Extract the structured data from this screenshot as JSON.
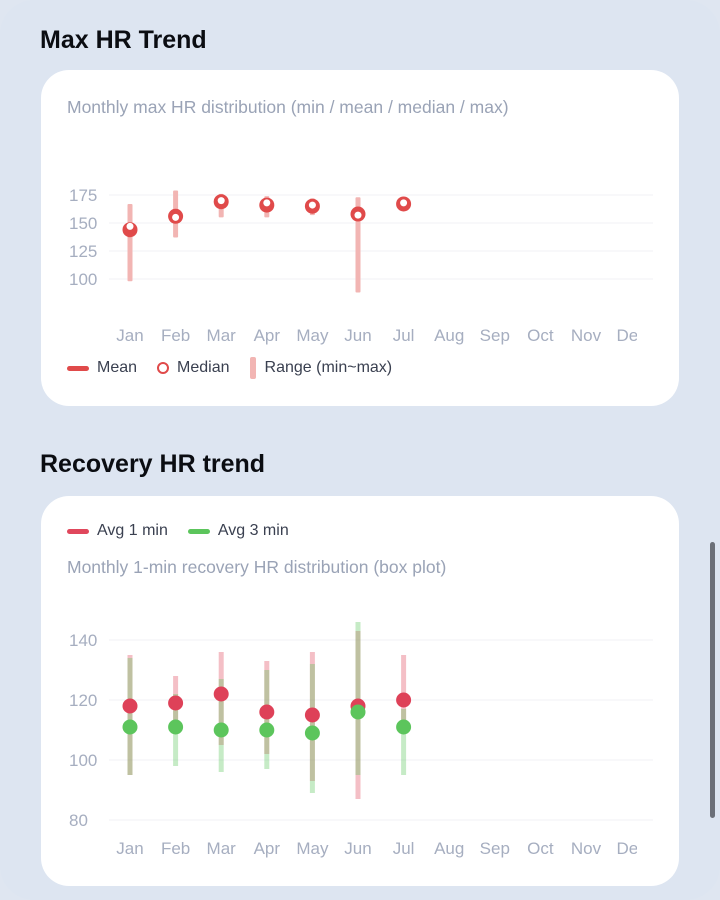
{
  "sections": [
    {
      "title": "Max HR Trend"
    },
    {
      "title": "Recovery HR trend"
    }
  ],
  "legends": {
    "max_hr": [
      {
        "label": "Mean",
        "kind": "line",
        "color": "#e04a4a"
      },
      {
        "label": "Median",
        "kind": "ring",
        "color": "#e04a4a"
      },
      {
        "label": "Range (min~max)",
        "kind": "bar",
        "color": "#f2b5b3"
      }
    ],
    "recovery": [
      {
        "label": "Avg 1 min",
        "kind": "line",
        "color": "#e0475c"
      },
      {
        "label": "Avg 3 min",
        "kind": "line",
        "color": "#5cc55c"
      }
    ]
  },
  "chart_data": [
    {
      "type": "scatter",
      "title": "Monthly max HR distribution (min / mean / median / max)",
      "categories": [
        "Jan",
        "Feb",
        "Mar",
        "Apr",
        "May",
        "Jun",
        "Jul",
        "Aug",
        "Sep",
        "Oct",
        "Nov",
        "Dec"
      ],
      "y_ticks": [
        100,
        125,
        150,
        175
      ],
      "ylim": [
        80,
        180
      ],
      "grid": true,
      "legend_position": "bottom-left",
      "series": [
        {
          "name": "Mean",
          "values": [
            144,
            156,
            169,
            166,
            165,
            158,
            167,
            null,
            null,
            null,
            null,
            null
          ]
        },
        {
          "name": "Median",
          "values": [
            147,
            155,
            170,
            168,
            166,
            157,
            168,
            null,
            null,
            null,
            null,
            null
          ]
        },
        {
          "name": "Range (min~max)",
          "min": [
            98,
            137,
            155,
            155,
            157,
            88,
            null,
            null,
            null,
            null,
            null,
            null
          ],
          "max": [
            167,
            179,
            176,
            174,
            172,
            173,
            null,
            null,
            null,
            null,
            null,
            null
          ]
        }
      ]
    },
    {
      "type": "box",
      "title": "Monthly 1-min recovery HR distribution (box plot)",
      "categories": [
        "Jan",
        "Feb",
        "Mar",
        "Apr",
        "May",
        "Jun",
        "Jul",
        "Aug",
        "Sep",
        "Oct",
        "Nov",
        "Dec"
      ],
      "y_ticks": [
        80,
        100,
        120,
        140
      ],
      "ylim": [
        80,
        150
      ],
      "grid": true,
      "legend_position": "top-left",
      "series": [
        {
          "name": "Avg 1 min",
          "values": [
            118,
            119,
            122,
            116,
            115,
            118,
            120,
            null,
            null,
            null,
            null,
            null
          ],
          "min": [
            95,
            110,
            105,
            102,
            93,
            87,
            110,
            null,
            null,
            null,
            null,
            null
          ],
          "max": [
            135,
            128,
            136,
            133,
            136,
            143,
            135,
            null,
            null,
            null,
            null,
            null
          ]
        },
        {
          "name": "Avg 3 min",
          "values": [
            111,
            111,
            110,
            110,
            109,
            116,
            111,
            null,
            null,
            null,
            null,
            null
          ],
          "min": [
            95,
            98,
            96,
            97,
            89,
            95,
            95,
            null,
            null,
            null,
            null,
            null
          ],
          "max": [
            134,
            122,
            127,
            130,
            132,
            146,
            117,
            null,
            null,
            null,
            null,
            null
          ]
        }
      ]
    }
  ]
}
